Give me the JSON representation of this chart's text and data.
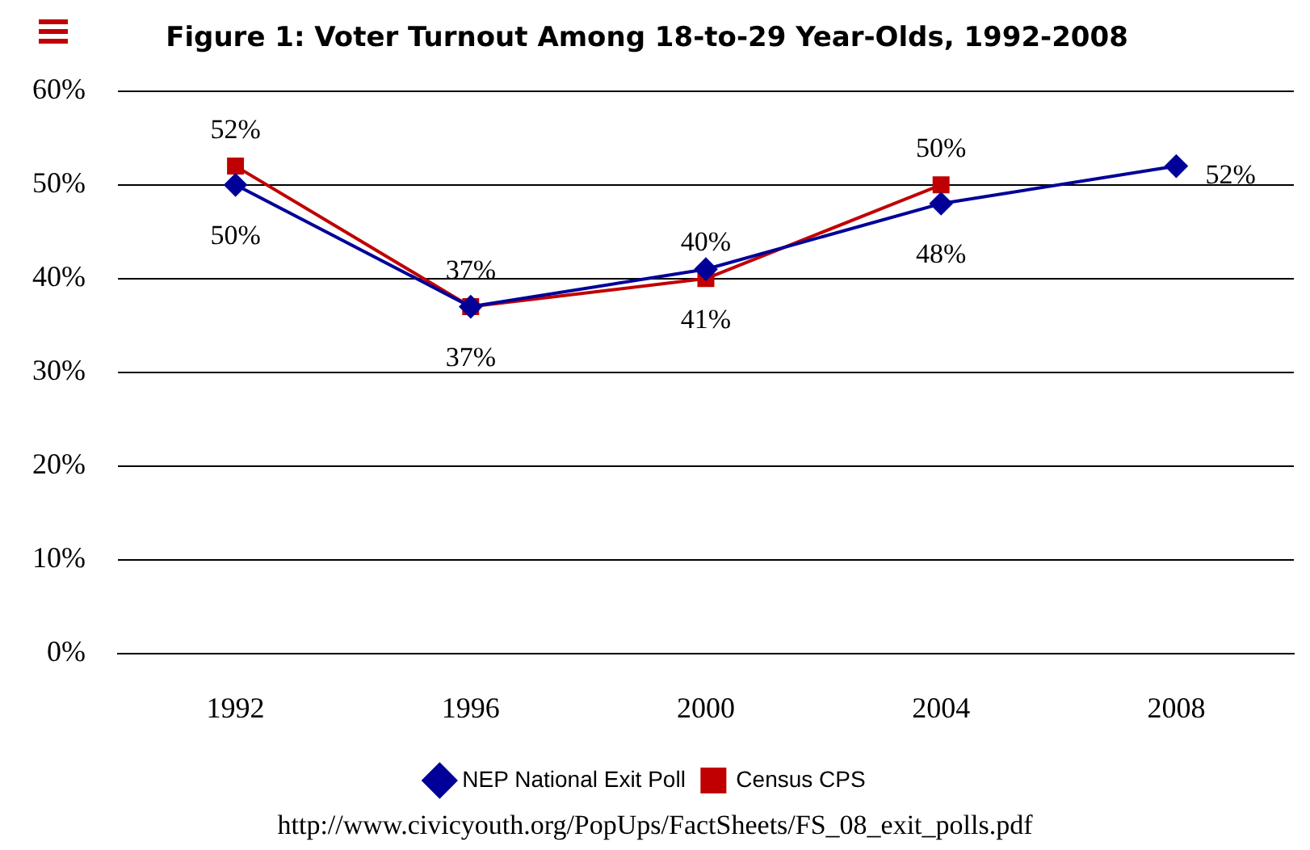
{
  "chart_data": {
    "type": "line",
    "title": "Figure 1: Voter Turnout Among 18-to-29 Year-Olds, 1992-2008",
    "categories": [
      "1992",
      "1996",
      "2000",
      "2004",
      "2008"
    ],
    "series": [
      {
        "name": "NEP National Exit Poll",
        "color": "#000099",
        "marker": "diamond",
        "values": [
          50,
          37,
          41,
          48,
          52
        ],
        "value_labels": [
          "50%",
          "37%",
          "41%",
          "48%",
          "52%"
        ]
      },
      {
        "name": "Census CPS",
        "color": "#c00000",
        "marker": "square",
        "values": [
          52,
          37,
          40,
          50,
          null
        ],
        "value_labels": [
          "52%",
          "37%",
          "40%",
          "50%",
          null
        ]
      }
    ],
    "ylim": [
      0,
      60
    ],
    "yticks": [
      {
        "value": 0,
        "label": "0%"
      },
      {
        "value": 10,
        "label": "10%"
      },
      {
        "value": 20,
        "label": "20%"
      },
      {
        "value": 30,
        "label": "30%"
      },
      {
        "value": 40,
        "label": "40%"
      },
      {
        "value": 50,
        "label": "50%"
      },
      {
        "value": 60,
        "label": "60%"
      }
    ],
    "grid": "y",
    "legend": "bottom",
    "line_style": "solid",
    "annotations": [
      "http://www.civicyouth.org/PopUps/FactSheets/FS_08_exit_polls.pdf"
    ]
  }
}
